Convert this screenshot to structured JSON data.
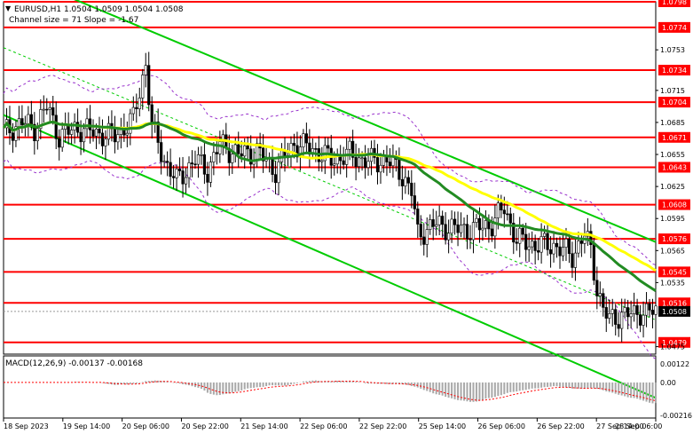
{
  "header": {
    "symbol_line": "EURUSD,H1  1.0504 1.0509 1.0504 1.0508",
    "channel_line": "Channel size = 71 Slope = -1.67"
  },
  "macd": {
    "label": "MACD(12,26,9) -0.00137 -0.00168",
    "ticks": [
      {
        "value": 0.00122,
        "label": "0.00122"
      },
      {
        "value": 0.0,
        "label": "0.00"
      },
      {
        "value": -0.00216,
        "label": "-0.00216"
      }
    ]
  },
  "colors": {
    "price_line": "#ff0000",
    "candles": "#000000",
    "ema_fast": "#228b22",
    "ema_slow": "#ffff00",
    "channel": "#00cc00",
    "bollinger": "#9932cc",
    "histogram": "#a9a9a9",
    "signal": "#ff0000"
  },
  "chart_data": {
    "type": "candlestick",
    "instrument": "EURUSD",
    "timeframe": "H1",
    "ylim": [
      1.0468,
      1.0798
    ],
    "price_ticks": [
      {
        "value": 1.0798,
        "label": "1.0798",
        "highlight": true
      },
      {
        "value": 1.0774,
        "label": "1.0774",
        "highlight": true
      },
      {
        "value": 1.0753,
        "label": "1.0753",
        "highlight": false
      },
      {
        "value": 1.0734,
        "label": "1.0734",
        "highlight": true
      },
      {
        "value": 1.0715,
        "label": "1.0715",
        "highlight": false
      },
      {
        "value": 1.0704,
        "label": "1.0704",
        "highlight": true
      },
      {
        "value": 1.0685,
        "label": "1.0685",
        "highlight": false
      },
      {
        "value": 1.0671,
        "label": "1.0671",
        "highlight": true
      },
      {
        "value": 1.0655,
        "label": "1.0655",
        "highlight": false
      },
      {
        "value": 1.0643,
        "label": "1.0643",
        "highlight": true
      },
      {
        "value": 1.0625,
        "label": "1.0625",
        "highlight": false
      },
      {
        "value": 1.0608,
        "label": "1.0608",
        "highlight": true
      },
      {
        "value": 1.0595,
        "label": "1.0595",
        "highlight": false
      },
      {
        "value": 1.0576,
        "label": "1.0576",
        "highlight": true
      },
      {
        "value": 1.0565,
        "label": "1.0565",
        "highlight": false
      },
      {
        "value": 1.0545,
        "label": "1.0545",
        "highlight": true
      },
      {
        "value": 1.0535,
        "label": "1.0535",
        "highlight": false
      },
      {
        "value": 1.0516,
        "label": "1.0516",
        "highlight": true
      },
      {
        "value": 1.0508,
        "label": "1.0508",
        "highlight": "current"
      },
      {
        "value": 1.0479,
        "label": "1.0479",
        "highlight": true
      },
      {
        "value": 1.0475,
        "label": "1.0475",
        "highlight": false
      }
    ],
    "levels": [
      1.0798,
      1.0774,
      1.0734,
      1.0704,
      1.0671,
      1.0643,
      1.0608,
      1.0576,
      1.0545,
      1.0516,
      1.0479
    ],
    "current_price": 1.0508,
    "x_labels": [
      "18 Sep 2023",
      "19 Sep 14:00",
      "20 Sep 06:00",
      "20 Sep 22:00",
      "21 Sep 14:00",
      "22 Sep 06:00",
      "22 Sep 22:00",
      "25 Sep 14:00",
      "26 Sep 06:00",
      "26 Sep 22:00",
      "27 Sep 14:00",
      "28 Sep 06:00"
    ],
    "close_anchors": [
      [
        0,
        1.0675
      ],
      [
        6,
        1.0685
      ],
      [
        10,
        1.068
      ],
      [
        14,
        1.07
      ],
      [
        18,
        1.0672
      ],
      [
        24,
        1.068
      ],
      [
        30,
        1.0675
      ],
      [
        36,
        1.0672
      ],
      [
        42,
        1.0688
      ],
      [
        46,
        1.074
      ],
      [
        48,
        1.068
      ],
      [
        52,
        1.065
      ],
      [
        56,
        1.063
      ],
      [
        62,
        1.065
      ],
      [
        66,
        1.064
      ],
      [
        70,
        1.0665
      ],
      [
        76,
        1.0655
      ],
      [
        82,
        1.0658
      ],
      [
        88,
        1.064
      ],
      [
        94,
        1.0665
      ],
      [
        100,
        1.066
      ],
      [
        106,
        1.065
      ],
      [
        112,
        1.0655
      ],
      [
        118,
        1.0648
      ],
      [
        124,
        1.065
      ],
      [
        128,
        1.064
      ],
      [
        132,
        1.062
      ],
      [
        134,
        1.058
      ],
      [
        140,
        1.059
      ],
      [
        146,
        1.0585
      ],
      [
        152,
        1.0585
      ],
      [
        158,
        1.059
      ],
      [
        162,
        1.0605
      ],
      [
        166,
        1.0575
      ],
      [
        172,
        1.057
      ],
      [
        178,
        1.057
      ],
      [
        184,
        1.056
      ],
      [
        188,
        1.058
      ],
      [
        190,
        1.0565
      ],
      [
        192,
        1.053
      ],
      [
        194,
        1.051
      ],
      [
        196,
        1.05
      ],
      [
        200,
        1.0505
      ],
      [
        204,
        1.0505
      ],
      [
        206,
        1.0508
      ],
      [
        208,
        1.0506
      ],
      [
        210,
        1.0508
      ]
    ]
  }
}
